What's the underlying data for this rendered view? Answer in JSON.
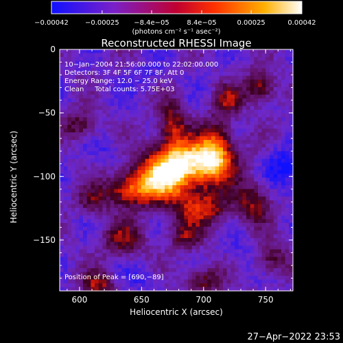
{
  "chart_data": {
    "type": "heatmap",
    "title": "Reconstructed RHESSI Image",
    "xlabel": "Heliocentric X (arcsec)",
    "ylabel": "Heliocentric Y (arcsec)",
    "xlim": [
      584,
      772
    ],
    "ylim": [
      -190,
      0
    ],
    "x_ticks": [
      "600",
      "650",
      "700",
      "750"
    ],
    "y_ticks": [
      "0",
      "−50",
      "−100",
      "−150"
    ],
    "colorbar": {
      "min": -0.00042,
      "max": 0.00042,
      "tick_labels": [
        "−0.00042",
        "−0.00025",
        "−8.4e−05",
        "8.4e−05",
        "0.00025",
        "0.00042"
      ],
      "tick_values": [
        -0.00042,
        -0.00025,
        -8.4e-05,
        8.4e-05,
        0.00025,
        0.00042
      ],
      "unit_label": "(photons cm⁻² s⁻¹ asec⁻²)",
      "colors": [
        "#2010ff",
        "#7a20c8",
        "#c80060",
        "#ff3a00",
        "#ffb000",
        "#ffffff"
      ]
    },
    "annotations": {
      "time": "10−Jan−2004 21:56:00.000 to 22:02:00.000",
      "detectors": "Detectors: 3F 4F 5F 6F 7F 8F, Att 0",
      "energy": "Energy Range: 12.0 − 25.0 keV",
      "clean": "Clean     Total counts: 5.75E+03",
      "peak": "Position of Peak = [690,−89]"
    },
    "peak": {
      "x": 690,
      "y": -89
    },
    "blobs": [
      {
        "x": 690,
        "y": -89,
        "sx": 22,
        "sy": 12,
        "a": 1.0
      },
      {
        "x": 668,
        "y": -103,
        "sx": 18,
        "sy": 14,
        "a": 0.85
      },
      {
        "x": 710,
        "y": -78,
        "sx": 10,
        "sy": 16,
        "a": 0.7
      },
      {
        "x": 675,
        "y": -60,
        "sx": 8,
        "sy": 14,
        "a": 0.6
      },
      {
        "x": 640,
        "y": -110,
        "sx": 14,
        "sy": 9,
        "a": 0.65
      },
      {
        "x": 700,
        "y": -125,
        "sx": 16,
        "sy": 10,
        "a": 0.6
      },
      {
        "x": 635,
        "y": -150,
        "sx": 12,
        "sy": 10,
        "a": 0.5
      },
      {
        "x": 685,
        "y": -148,
        "sx": 9,
        "sy": 8,
        "a": 0.45
      },
      {
        "x": 745,
        "y": -30,
        "sx": 9,
        "sy": 9,
        "a": 0.6
      },
      {
        "x": 720,
        "y": -40,
        "sx": 8,
        "sy": 8,
        "a": 0.45
      },
      {
        "x": 740,
        "y": -120,
        "sx": 10,
        "sy": 12,
        "a": 0.5
      },
      {
        "x": 615,
        "y": -185,
        "sx": 10,
        "sy": 7,
        "a": 0.55
      },
      {
        "x": 700,
        "y": -182,
        "sx": 10,
        "sy": 8,
        "a": 0.5
      },
      {
        "x": 600,
        "y": -60,
        "sx": 10,
        "sy": 8,
        "a": 0.45
      },
      {
        "x": 755,
        "y": -165,
        "sx": 10,
        "sy": 9,
        "a": 0.45
      },
      {
        "x": 610,
        "y": -120,
        "sx": 9,
        "sy": 8,
        "a": 0.4
      }
    ],
    "dips": [
      {
        "x": 760,
        "y": -90,
        "sx": 10,
        "sy": 10,
        "a": 0.7
      },
      {
        "x": 770,
        "y": -100,
        "sx": 8,
        "sy": 12,
        "a": 0.6
      },
      {
        "x": 625,
        "y": -80,
        "sx": 10,
        "sy": 8,
        "a": 0.4
      },
      {
        "x": 650,
        "y": -180,
        "sx": 10,
        "sy": 8,
        "a": 0.45
      },
      {
        "x": 730,
        "y": -160,
        "sx": 10,
        "sy": 10,
        "a": 0.4
      },
      {
        "x": 655,
        "y": -20,
        "sx": 10,
        "sy": 8,
        "a": 0.35
      }
    ]
  },
  "footer": {
    "timestamp": "27−Apr−2022 23:53"
  }
}
